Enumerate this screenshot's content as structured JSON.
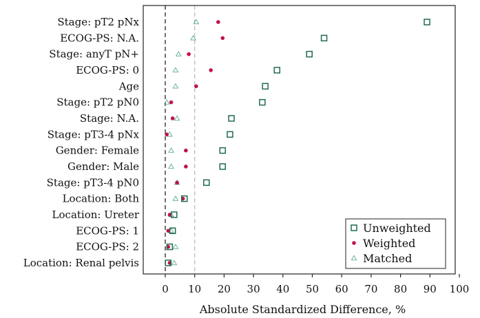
{
  "chart_data": {
    "type": "scatter",
    "orientation": "horizontal-dot",
    "title": "",
    "xlabel": "Absolute Standardized Difference, %",
    "ylabel": "",
    "xlim": [
      -7,
      100
    ],
    "xticks": [
      0,
      10,
      20,
      30,
      40,
      50,
      60,
      70,
      80,
      90,
      100
    ],
    "grid": false,
    "legend_position": "bottom-right",
    "reference_lines": [
      {
        "x": 0,
        "style": "dashed",
        "color": "#222222"
      },
      {
        "x": 10,
        "style": "dashed",
        "color": "#bbbbbb"
      }
    ],
    "categories": [
      "Stage: pT2 pNx",
      "ECOG-PS: N.A.",
      "Stage: anyT pN+",
      "ECOG-PS: 0",
      "Age",
      "Stage: pT2 pN0",
      "Stage: N.A.",
      "Stage: pT3-4 pNx",
      "Gender: Female",
      "Gender: Male",
      "Stage: pT3-4 pN0",
      "Location: Both",
      "Location: Ureter",
      "ECOG-PS: 1",
      "ECOG-PS: 2",
      "Location: Renal pelvis"
    ],
    "series": [
      {
        "name": "Unweighted",
        "marker": "square",
        "color": "#1f6b4a",
        "values": [
          89,
          54,
          49,
          38,
          34,
          33,
          22.5,
          22,
          19.5,
          19.5,
          14,
          6.5,
          3,
          2.5,
          1.5,
          1
        ]
      },
      {
        "name": "Weighted",
        "marker": "dot",
        "color": "#c0134a",
        "values": [
          18,
          19.5,
          8,
          15.5,
          10.5,
          2,
          2.5,
          0.5,
          7,
          7,
          4,
          6,
          1.5,
          1,
          1,
          1.5
        ]
      },
      {
        "name": "Matched",
        "marker": "triangle",
        "color": "#5aae85",
        "values": [
          10.5,
          9.5,
          4.5,
          3.5,
          3.5,
          0.5,
          4,
          1.5,
          2,
          2,
          4,
          3.5,
          2,
          2,
          3.5,
          3
        ]
      }
    ]
  }
}
